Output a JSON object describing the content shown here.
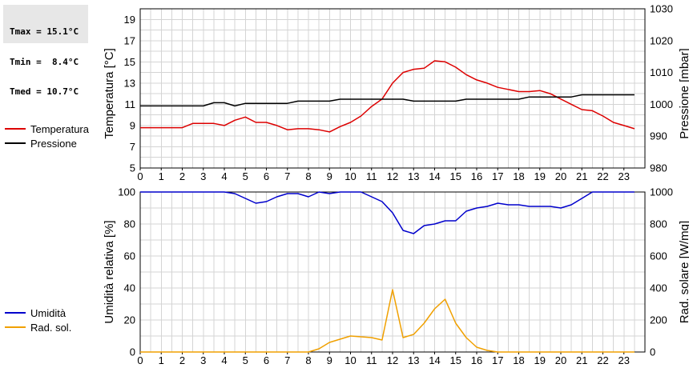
{
  "stats": {
    "tmax": "Tmax = 15.1°C",
    "tmin": "Tmin =  8.4°C",
    "tmed": "Tmed = 10.7°C"
  },
  "colors": {
    "temperatura": "#dd0000",
    "pressione": "#000000",
    "umidita": "#0000cc",
    "rad_sol": "#f0a000",
    "grid": "#d4d4d4"
  },
  "chart_data": [
    {
      "type": "line",
      "grid": true,
      "legend": "left",
      "x_ticks": [
        "0",
        "1",
        "2",
        "3",
        "4",
        "5",
        "6",
        "7",
        "8",
        "9",
        "10",
        "11",
        "12",
        "13",
        "14",
        "15",
        "16",
        "17",
        "18",
        "19",
        "20",
        "21",
        "22",
        "23"
      ],
      "xlim": [
        0,
        24
      ],
      "ylabel_left": "Temperatura [°C]",
      "ylabel_right": "Pressione [mbar]",
      "yticks_left": [
        "5",
        "7",
        "9",
        "11",
        "13",
        "15",
        "17",
        "19"
      ],
      "yticks_right": [
        "980",
        "990",
        "1000",
        "1010",
        "1020",
        "1030"
      ],
      "ylim_left": [
        5,
        20
      ],
      "ylim_right": [
        980,
        1030
      ],
      "series": [
        {
          "name": "Temperatura",
          "axis": "left",
          "x": [
            0,
            0.5,
            1,
            1.5,
            2,
            2.5,
            3,
            3.5,
            4,
            4.5,
            5,
            5.5,
            6,
            6.5,
            7,
            7.5,
            8,
            8.5,
            9,
            9.5,
            10,
            10.5,
            11,
            11.5,
            12,
            12.5,
            13,
            13.5,
            14,
            14.5,
            15,
            15.5,
            16,
            16.5,
            17,
            17.5,
            18,
            18.5,
            19,
            19.5,
            20,
            20.5,
            21,
            21.5,
            22,
            22.5,
            23,
            23.5
          ],
          "values": [
            8.8,
            8.8,
            8.8,
            8.8,
            8.8,
            9.2,
            9.2,
            9.2,
            9.0,
            9.5,
            9.8,
            9.3,
            9.3,
            9.0,
            8.6,
            8.7,
            8.7,
            8.6,
            8.4,
            8.9,
            9.3,
            9.9,
            10.8,
            11.5,
            13.0,
            14.0,
            14.3,
            14.4,
            15.1,
            15.0,
            14.5,
            13.8,
            13.3,
            13.0,
            12.6,
            12.4,
            12.2,
            12.2,
            12.3,
            12.0,
            11.5,
            11.0,
            10.5,
            10.4,
            9.9,
            9.3,
            9.0,
            8.7
          ]
        },
        {
          "name": "Pressione",
          "axis": "right",
          "x": [
            0,
            0.5,
            1,
            1.5,
            2,
            2.5,
            3,
            3.5,
            4,
            4.5,
            5,
            5.5,
            6,
            6.5,
            7,
            7.5,
            8,
            8.5,
            9,
            9.5,
            10,
            10.5,
            11,
            11.5,
            12,
            12.5,
            13,
            13.5,
            14,
            14.5,
            15,
            15.5,
            16,
            16.5,
            17,
            17.5,
            18,
            18.5,
            19,
            19.5,
            20,
            20.5,
            21,
            21.5,
            22,
            22.5,
            23,
            23.5
          ],
          "values": [
            999.5,
            999.5,
            999.5,
            999.5,
            999.5,
            999.5,
            999.5,
            1000.5,
            1000.5,
            999.5,
            1000.3,
            1000.3,
            1000.3,
            1000.3,
            1000.3,
            1001.0,
            1001.0,
            1001.0,
            1001.0,
            1001.6,
            1001.6,
            1001.6,
            1001.6,
            1001.6,
            1001.6,
            1001.6,
            1001.0,
            1001.0,
            1001.0,
            1001.0,
            1001.0,
            1001.6,
            1001.6,
            1001.6,
            1001.6,
            1001.6,
            1001.6,
            1002.3,
            1002.3,
            1002.3,
            1002.3,
            1002.3,
            1003.0,
            1003.0,
            1003.0,
            1003.0,
            1003.0,
            1003.0
          ]
        }
      ]
    },
    {
      "type": "line",
      "grid": true,
      "legend": "left",
      "x_ticks": [
        "0",
        "1",
        "2",
        "3",
        "4",
        "5",
        "6",
        "7",
        "8",
        "9",
        "10",
        "11",
        "12",
        "13",
        "14",
        "15",
        "16",
        "17",
        "18",
        "19",
        "20",
        "21",
        "22",
        "23"
      ],
      "xlim": [
        0,
        24
      ],
      "ylabel_left": "Umidità relativa [%]",
      "ylabel_right": "Rad. solare [W/mq]",
      "yticks_left": [
        "0",
        "20",
        "40",
        "60",
        "80",
        "100"
      ],
      "yticks_right": [
        "0",
        "200",
        "400",
        "600",
        "800",
        "1000"
      ],
      "ylim_left": [
        0,
        100
      ],
      "ylim_right": [
        0,
        1000
      ],
      "series": [
        {
          "name": "Umidità",
          "axis": "left",
          "x": [
            0,
            0.5,
            1,
            1.5,
            2,
            2.5,
            3,
            3.5,
            4,
            4.5,
            5,
            5.5,
            6,
            6.5,
            7,
            7.5,
            8,
            8.5,
            9,
            9.5,
            10,
            10.5,
            11,
            11.5,
            12,
            12.5,
            13,
            13.5,
            14,
            14.5,
            15,
            15.5,
            16,
            16.5,
            17,
            17.5,
            18,
            18.5,
            19,
            19.5,
            20,
            20.5,
            21,
            21.5,
            22,
            22.5,
            23,
            23.5
          ],
          "values": [
            100,
            100,
            100,
            100,
            100,
            100,
            100,
            100,
            100,
            99,
            96,
            93,
            94,
            97,
            99,
            99,
            97,
            100,
            99,
            100,
            100,
            100,
            97,
            94,
            87,
            76,
            74,
            79,
            80,
            82,
            82,
            88,
            90,
            91,
            93,
            92,
            92,
            91,
            91,
            91,
            90,
            92,
            96,
            100,
            100,
            100,
            100,
            100
          ]
        },
        {
          "name": "Rad. sol.",
          "axis": "right",
          "x": [
            0,
            0.5,
            1,
            1.5,
            2,
            2.5,
            3,
            3.5,
            4,
            4.5,
            5,
            5.5,
            6,
            6.5,
            7,
            7.5,
            8,
            8.5,
            9,
            9.5,
            10,
            10.5,
            11,
            11.5,
            12,
            12.5,
            13,
            13.5,
            14,
            14.5,
            15,
            15.5,
            16,
            16.5,
            17,
            17.5,
            18,
            18.5,
            19,
            19.5,
            20,
            20.5,
            21,
            21.5,
            22,
            22.5,
            23,
            23.5
          ],
          "values": [
            0,
            0,
            0,
            0,
            0,
            0,
            0,
            0,
            0,
            0,
            0,
            0,
            0,
            0,
            0,
            0,
            0,
            20,
            60,
            80,
            100,
            95,
            90,
            75,
            390,
            90,
            110,
            180,
            270,
            330,
            180,
            90,
            30,
            10,
            0,
            0,
            0,
            0,
            0,
            0,
            0,
            0,
            0,
            0,
            0,
            0,
            0,
            0
          ]
        }
      ]
    }
  ]
}
